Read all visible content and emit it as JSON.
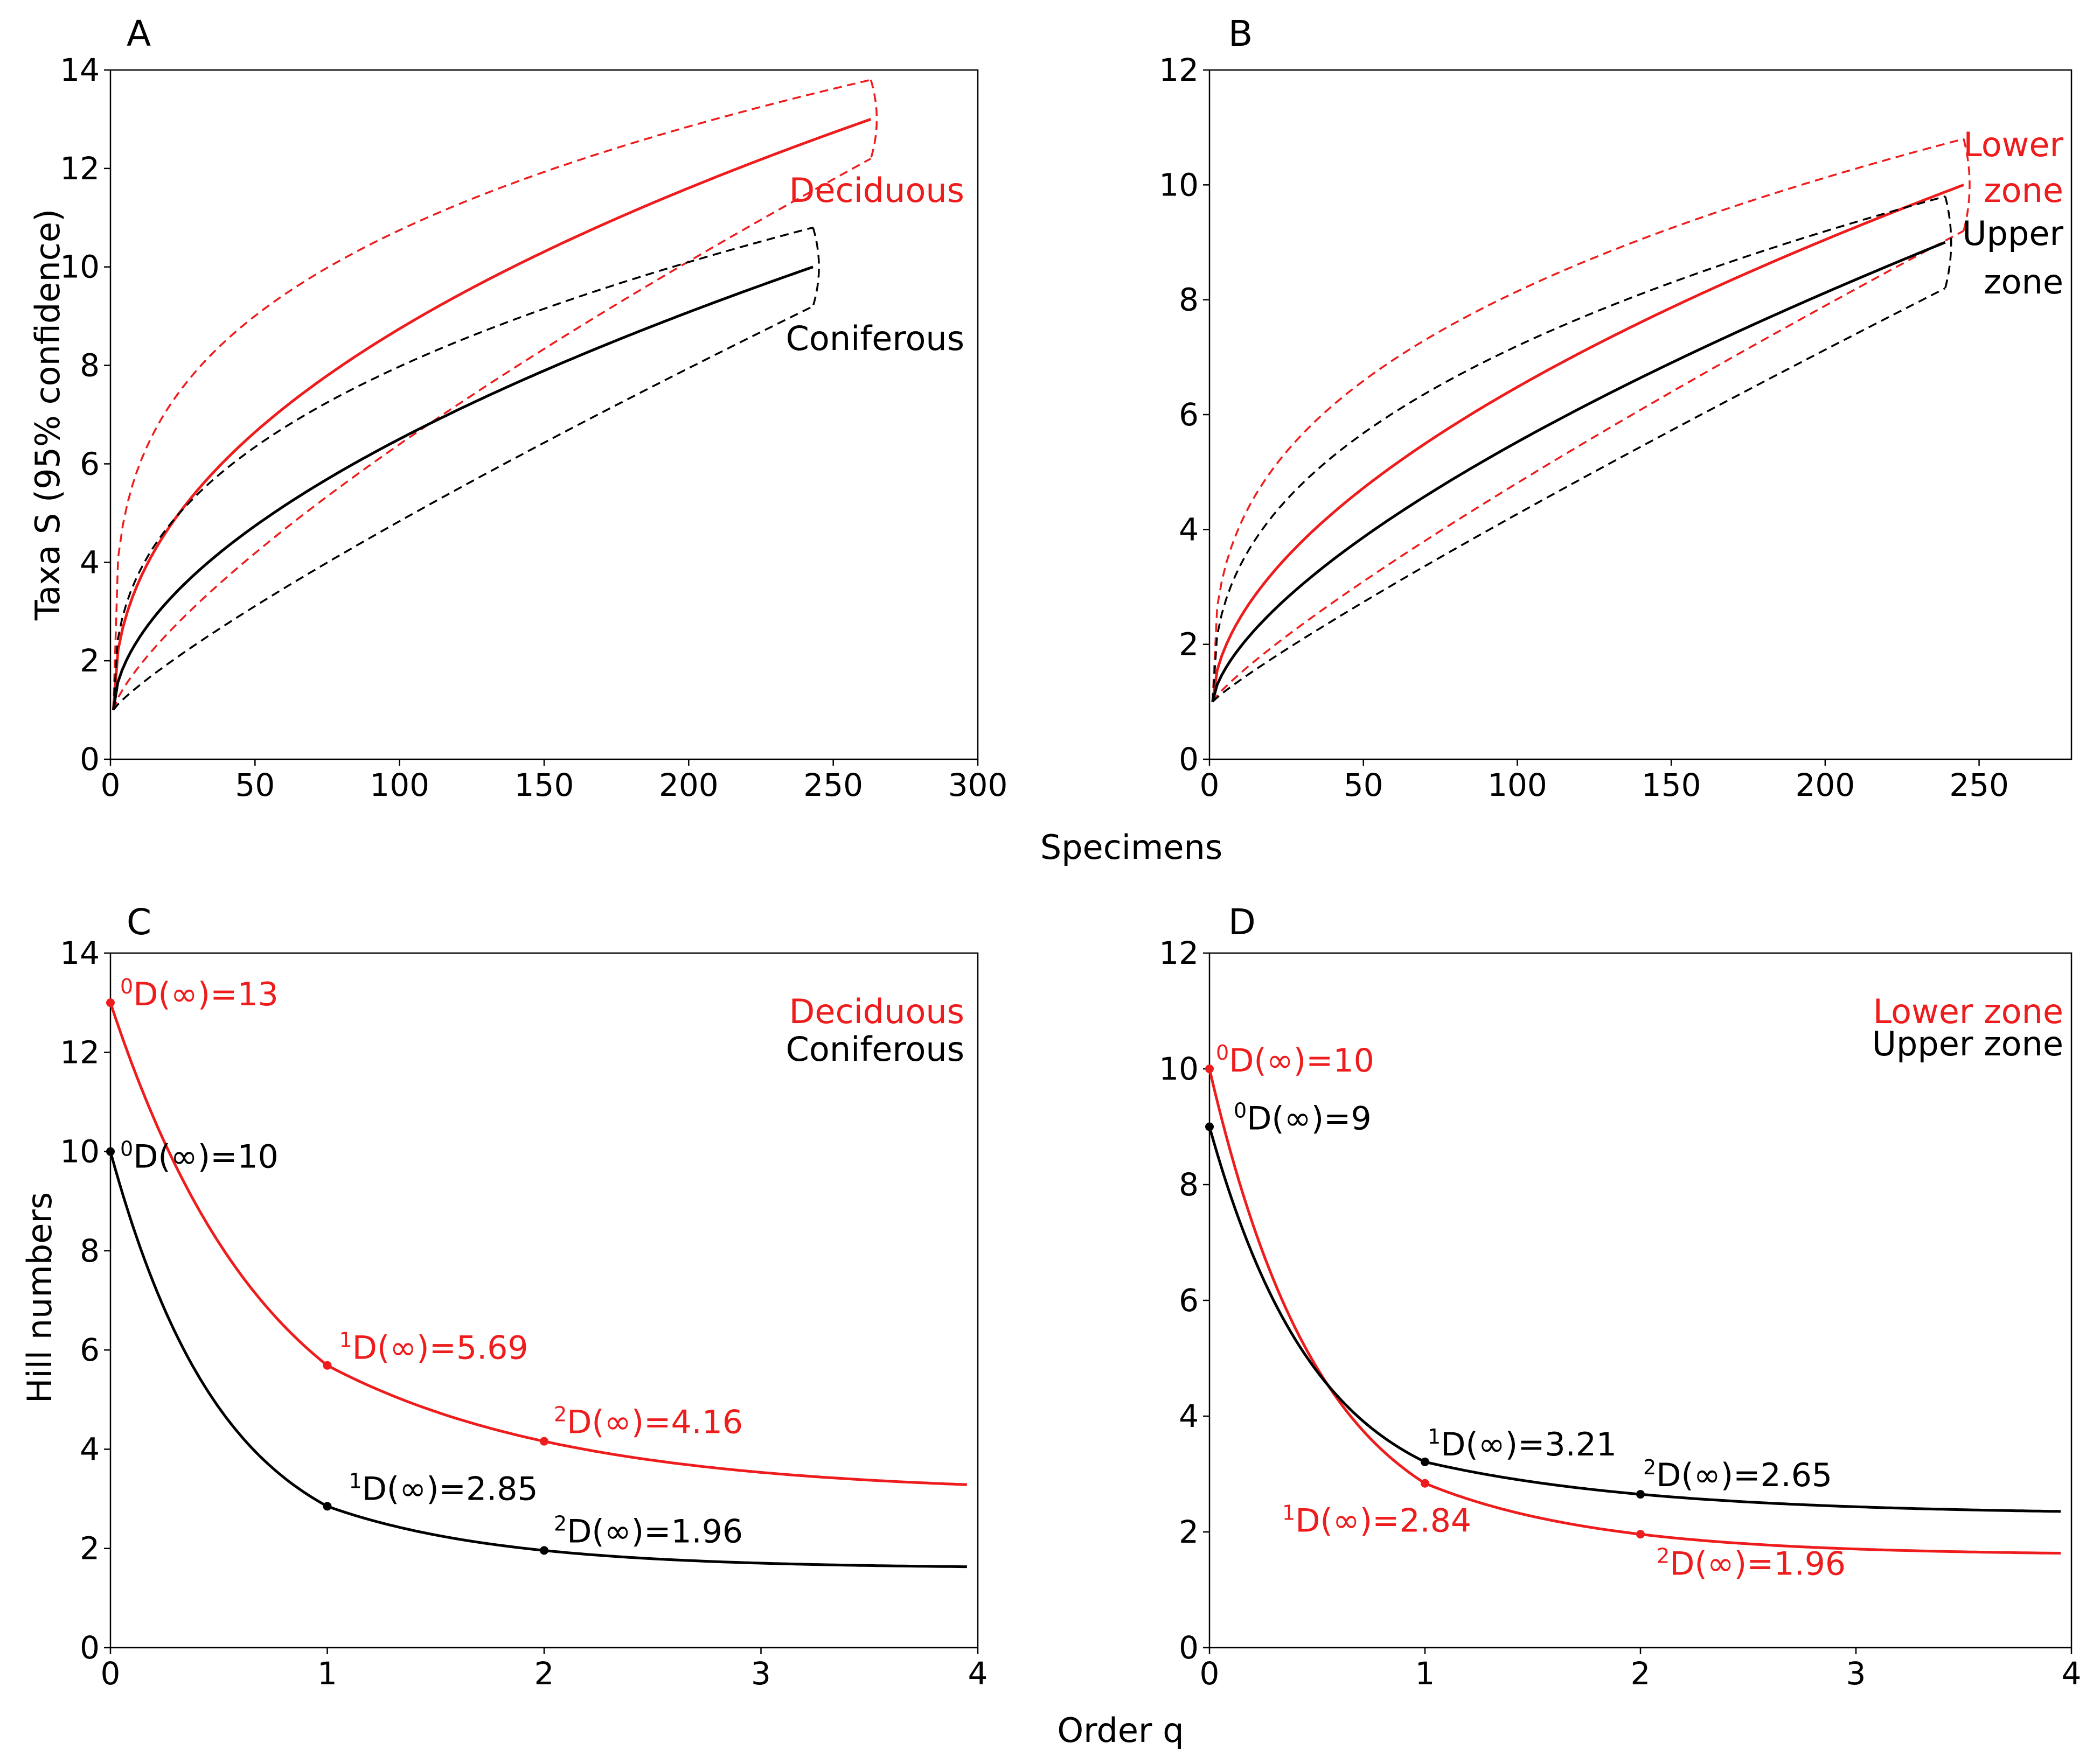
{
  "figure": {
    "shared_x_label_top": "Specimens",
    "shared_x_label_bottom": "Order q",
    "colors": {
      "deciduous": "#ee1c1c",
      "coniferous": "#000000",
      "text": "#000000"
    }
  },
  "chart_data": [
    {
      "panel": "A",
      "type": "line",
      "title": "A",
      "xlabel": "Specimens",
      "ylabel": "Taxa S (95% confidence)",
      "xlim": [
        0,
        300
      ],
      "ylim": [
        0,
        14
      ],
      "x_ticks": [
        "0",
        "50",
        "100",
        "150",
        "200",
        "250",
        "300"
      ],
      "y_ticks": [
        "0",
        "2",
        "4",
        "6",
        "8",
        "10",
        "12",
        "14"
      ],
      "series": [
        {
          "name": "Deciduous",
          "color": "#ee1c1c",
          "style": "solid",
          "n_max": 263,
          "s_max": 13,
          "k": 0.45
        },
        {
          "name": "Deciduous upper 95%",
          "color": "#ee1c1c",
          "style": "dashed",
          "n_max": 263,
          "s_max": 13.8,
          "k": 0.28
        },
        {
          "name": "Deciduous lower 95%",
          "color": "#ee1c1c",
          "style": "dashed",
          "n_max": 263,
          "s_max": 12.2,
          "k": 0.75
        },
        {
          "name": "Coniferous",
          "color": "#000000",
          "style": "solid",
          "n_max": 243,
          "s_max": 10,
          "k": 0.55
        },
        {
          "name": "Coniferous upper 95%",
          "color": "#000000",
          "style": "dashed",
          "n_max": 243,
          "s_max": 10.8,
          "k": 0.38
        },
        {
          "name": "Coniferous lower 95%",
          "color": "#000000",
          "style": "dashed",
          "n_max": 243,
          "s_max": 9.2,
          "k": 0.85
        }
      ],
      "labels": [
        {
          "text": "Deciduous",
          "color": "#ee1c1c"
        },
        {
          "text": "Coniferous",
          "color": "#000000"
        }
      ]
    },
    {
      "panel": "B",
      "type": "line",
      "title": "B",
      "xlabel": "Specimens",
      "ylabel": "",
      "xlim": [
        0,
        280
      ],
      "ylim": [
        0,
        12
      ],
      "x_ticks": [
        "0",
        "50",
        "100",
        "150",
        "200",
        "250"
      ],
      "y_ticks": [
        "0",
        "2",
        "4",
        "6",
        "8",
        "10",
        "12"
      ],
      "series": [
        {
          "name": "Lower zone",
          "color": "#ee1c1c",
          "style": "solid",
          "n_max": 245,
          "s_max": 10,
          "k": 0.55
        },
        {
          "name": "Lower zone upper 95%",
          "color": "#ee1c1c",
          "style": "dashed",
          "n_max": 245,
          "s_max": 10.8,
          "k": 0.35
        },
        {
          "name": "Lower zone lower 95%",
          "color": "#ee1c1c",
          "style": "dashed",
          "n_max": 245,
          "s_max": 9.2,
          "k": 0.85
        },
        {
          "name": "Upper zone",
          "color": "#000000",
          "style": "solid",
          "n_max": 239,
          "s_max": 9,
          "k": 0.65
        },
        {
          "name": "Upper zone upper 95%",
          "color": "#000000",
          "style": "dashed",
          "n_max": 239,
          "s_max": 9.8,
          "k": 0.4
        },
        {
          "name": "Upper zone lower 95%",
          "color": "#000000",
          "style": "dashed",
          "n_max": 239,
          "s_max": 8.2,
          "k": 0.9
        }
      ],
      "labels": [
        {
          "text": "Lower",
          "color": "#ee1c1c"
        },
        {
          "text": "zone",
          "color": "#ee1c1c"
        },
        {
          "text": "Upper",
          "color": "#000000"
        },
        {
          "text": "zone",
          "color": "#000000"
        }
      ]
    },
    {
      "panel": "C",
      "type": "line",
      "title": "C",
      "xlabel": "Order q",
      "ylabel": "Hill numbers",
      "xlim": [
        0,
        4
      ],
      "ylim": [
        0,
        14
      ],
      "x_ticks": [
        "0",
        "1",
        "2",
        "3",
        "4"
      ],
      "y_ticks": [
        "0",
        "2",
        "4",
        "6",
        "8",
        "10",
        "12",
        "14"
      ],
      "series": [
        {
          "name": "Deciduous",
          "color": "#ee1c1c",
          "points": [
            [
              0,
              13
            ],
            [
              1,
              5.69
            ],
            [
              2,
              4.16
            ]
          ],
          "asymptote": 3.1
        },
        {
          "name": "Coniferous",
          "color": "#000000",
          "points": [
            [
              0,
              10
            ],
            [
              1,
              2.85
            ],
            [
              2,
              1.96
            ]
          ],
          "asymptote": 1.6
        }
      ],
      "annotations": [
        {
          "sup": "0",
          "text": "D(∞)=13",
          "color": "#ee1c1c"
        },
        {
          "sup": "1",
          "text": "D(∞)=5.69",
          "color": "#ee1c1c"
        },
        {
          "sup": "2",
          "text": "D(∞)=4.16",
          "color": "#ee1c1c"
        },
        {
          "sup": "0",
          "text": "D(∞)=10",
          "color": "#000000"
        },
        {
          "sup": "1",
          "text": "D(∞)=2.85",
          "color": "#000000"
        },
        {
          "sup": "2",
          "text": "D(∞)=1.96",
          "color": "#000000"
        }
      ],
      "legend": [
        {
          "text": "Deciduous",
          "color": "#ee1c1c"
        },
        {
          "text": "Coniferous",
          "color": "#000000"
        }
      ]
    },
    {
      "panel": "D",
      "type": "line",
      "title": "D",
      "xlabel": "Order q",
      "ylabel": "",
      "xlim": [
        0,
        4
      ],
      "ylim": [
        0,
        12
      ],
      "x_ticks": [
        "0",
        "1",
        "2",
        "3",
        "4"
      ],
      "y_ticks": [
        "0",
        "2",
        "4",
        "6",
        "8",
        "10",
        "12"
      ],
      "series": [
        {
          "name": "Lower zone",
          "color": "#ee1c1c",
          "points": [
            [
              0,
              10
            ],
            [
              1,
              2.84
            ],
            [
              2,
              1.96
            ]
          ],
          "asymptote": 1.6
        },
        {
          "name": "Upper zone",
          "color": "#000000",
          "points": [
            [
              0,
              9
            ],
            [
              1,
              3.21
            ],
            [
              2,
              2.65
            ]
          ],
          "asymptote": 2.3
        }
      ],
      "annotations": [
        {
          "sup": "0",
          "text": "D(∞)=10",
          "color": "#ee1c1c"
        },
        {
          "sup": "1",
          "text": "D(∞)=2.84",
          "color": "#ee1c1c"
        },
        {
          "sup": "2",
          "text": "D(∞)=1.96",
          "color": "#ee1c1c"
        },
        {
          "sup": "0",
          "text": "D(∞)=9",
          "color": "#000000"
        },
        {
          "sup": "1",
          "text": "D(∞)=3.21",
          "color": "#000000"
        },
        {
          "sup": "2",
          "text": "D(∞)=2.65",
          "color": "#000000"
        }
      ],
      "legend": [
        {
          "text": "Lower zone",
          "color": "#ee1c1c"
        },
        {
          "text": "Upper zone",
          "color": "#000000"
        }
      ]
    }
  ]
}
